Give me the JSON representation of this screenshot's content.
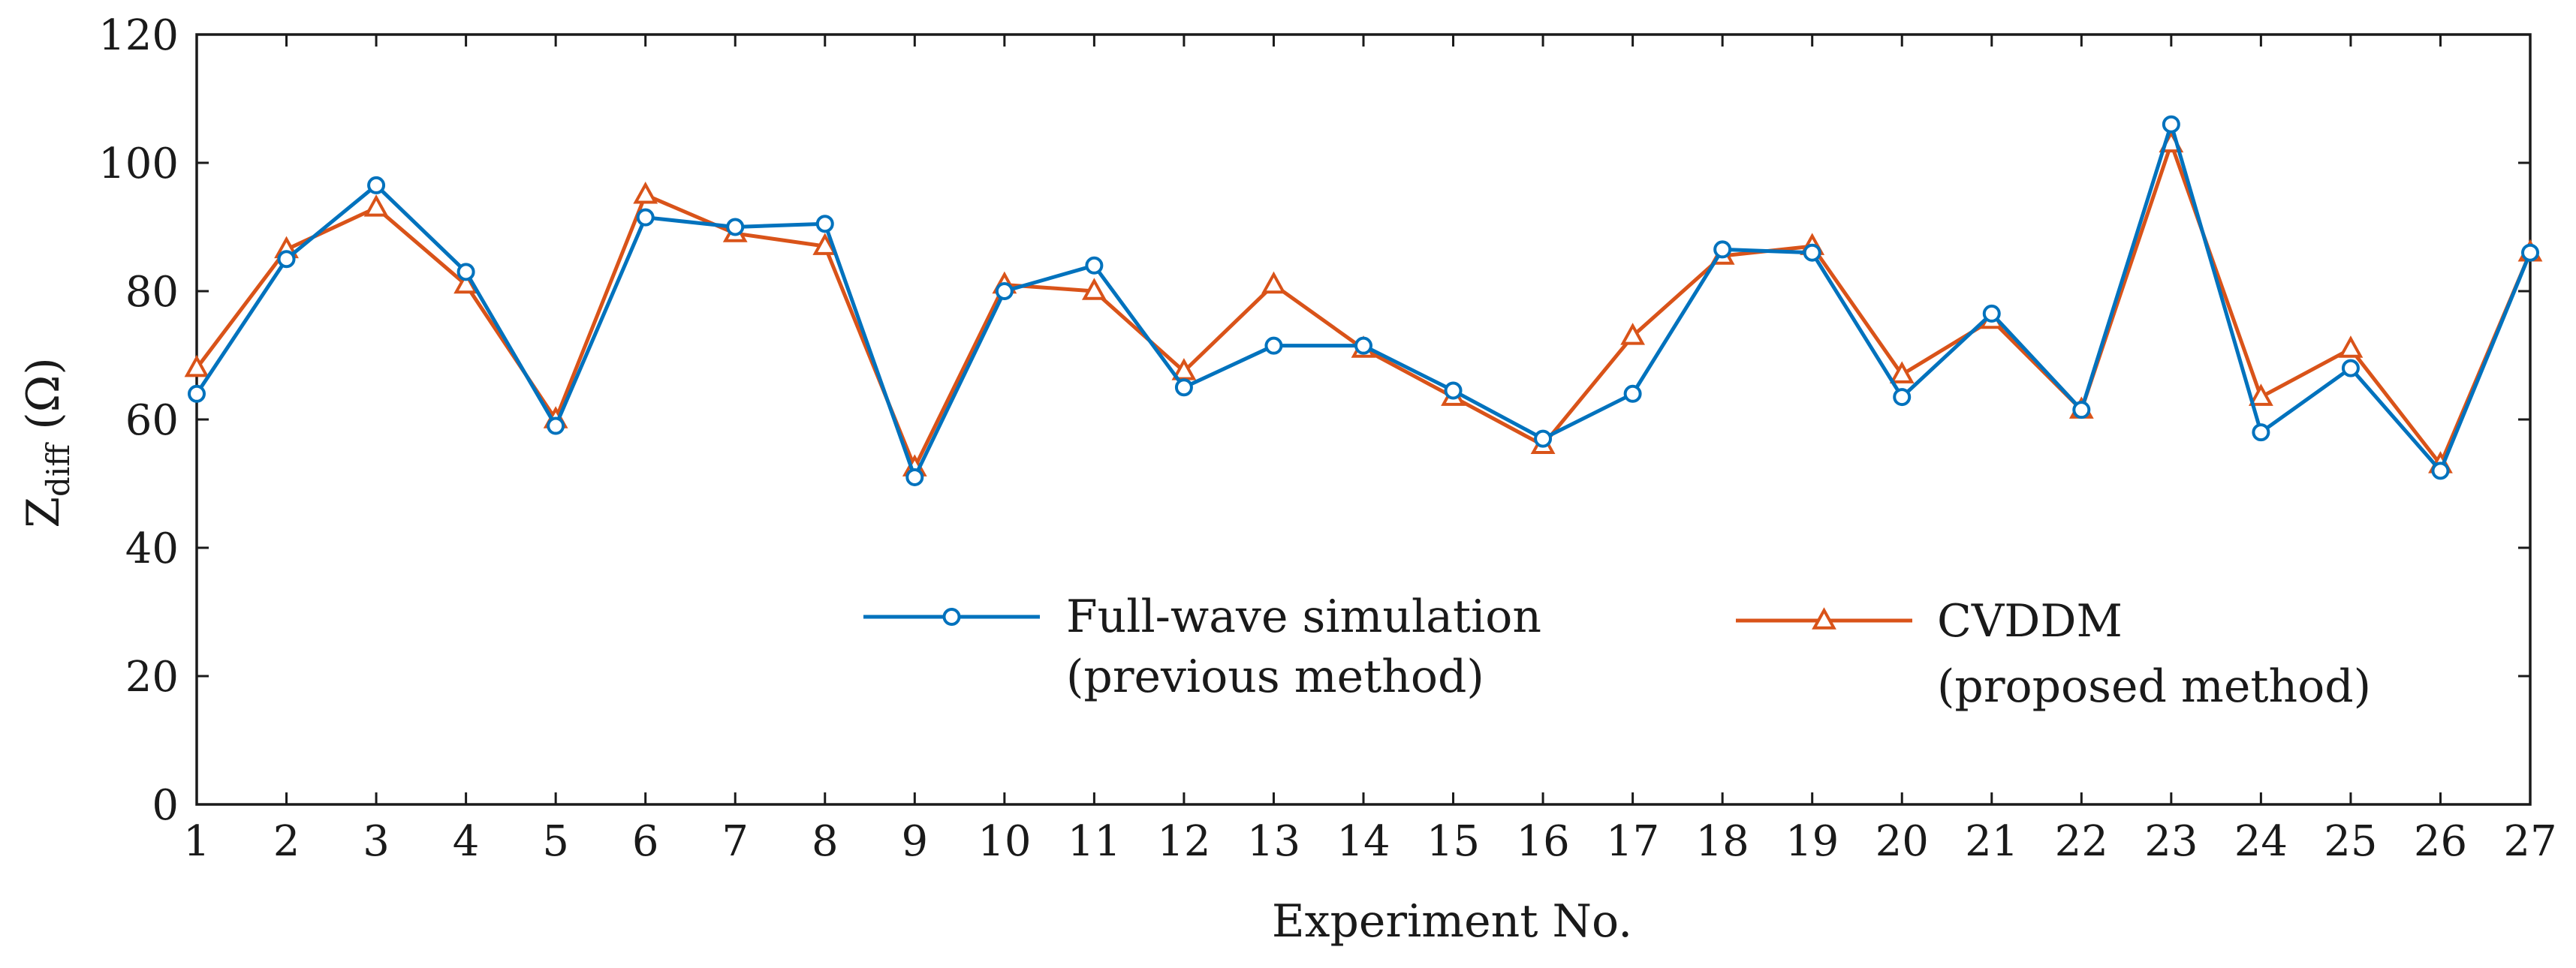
{
  "chart_data": {
    "type": "line",
    "xlabel": "Experiment No.",
    "ylabel": "Z",
    "ylabel_subscript": "diff",
    "ylabel_unit": " (Ω)",
    "xlim": [
      1,
      27
    ],
    "ylim": [
      0,
      120
    ],
    "xticks": [
      1,
      2,
      3,
      4,
      5,
      6,
      7,
      8,
      9,
      10,
      11,
      12,
      13,
      14,
      15,
      16,
      17,
      18,
      19,
      20,
      21,
      22,
      23,
      24,
      25,
      26,
      27
    ],
    "yticks": [
      0,
      20,
      40,
      60,
      80,
      100,
      120
    ],
    "grid": false,
    "legend_placement": "inside-bottom",
    "x": [
      1,
      2,
      3,
      4,
      5,
      6,
      7,
      8,
      9,
      10,
      11,
      12,
      13,
      14,
      15,
      16,
      17,
      18,
      19,
      20,
      21,
      22,
      23,
      24,
      25,
      26,
      27
    ],
    "series": [
      {
        "name_lines": [
          "Full-wave simulation",
          "(previous method)"
        ],
        "marker": "circle",
        "color": "#0072BD",
        "values": [
          64,
          85,
          96.5,
          83,
          59,
          91.5,
          90,
          90.5,
          51,
          80,
          84,
          65,
          71.5,
          71.5,
          64.5,
          57,
          64,
          86.5,
          86,
          63.5,
          76.5,
          61.5,
          106,
          58,
          68,
          52,
          86
        ]
      },
      {
        "name_lines": [
          "CVDDM",
          "(proposed method)"
        ],
        "marker": "triangle",
        "color": "#D95319",
        "values": [
          68,
          86.5,
          93,
          81,
          60,
          95,
          89,
          87,
          52.5,
          81,
          80,
          67.5,
          81,
          71,
          63.5,
          56,
          73,
          85.5,
          87,
          67,
          75.5,
          61.5,
          103,
          63.5,
          71,
          53,
          86
        ]
      }
    ]
  }
}
